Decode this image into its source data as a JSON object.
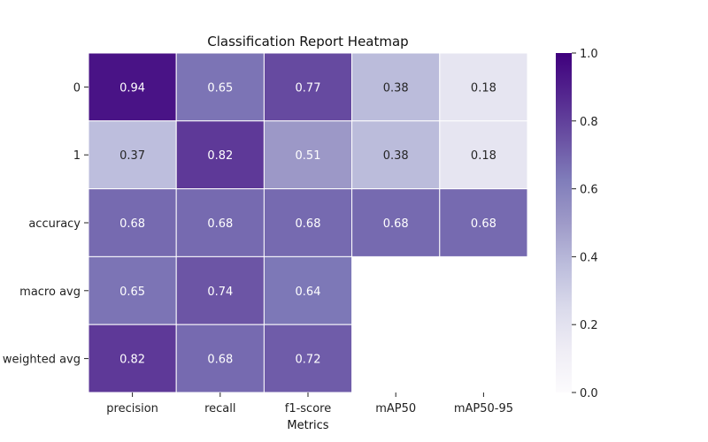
{
  "chart_data": {
    "type": "heatmap",
    "title": "Classification Report Heatmap",
    "xlabel": "Metrics",
    "ylabel": "",
    "columns": [
      "precision",
      "recall",
      "f1-score",
      "mAP50",
      "mAP50-95"
    ],
    "rows": [
      "0",
      "1",
      "accuracy",
      "macro avg",
      "weighted avg"
    ],
    "values": [
      [
        0.94,
        0.65,
        0.77,
        0.38,
        0.18
      ],
      [
        0.37,
        0.82,
        0.51,
        0.38,
        0.18
      ],
      [
        0.68,
        0.68,
        0.68,
        0.68,
        0.68
      ],
      [
        0.65,
        0.74,
        0.64,
        null,
        null
      ],
      [
        0.82,
        0.68,
        0.72,
        null,
        null
      ]
    ],
    "value_format": "0.00",
    "colorscale": "Purples",
    "color_low": "#fcfbfd",
    "color_high": "#3f007d",
    "vmin": 0,
    "vmax": 1,
    "colorbar_ticks": [
      "0.0",
      "0.2",
      "0.4",
      "0.6",
      "0.8",
      "1.0"
    ],
    "colorbar_position": "right",
    "grid": false
  }
}
